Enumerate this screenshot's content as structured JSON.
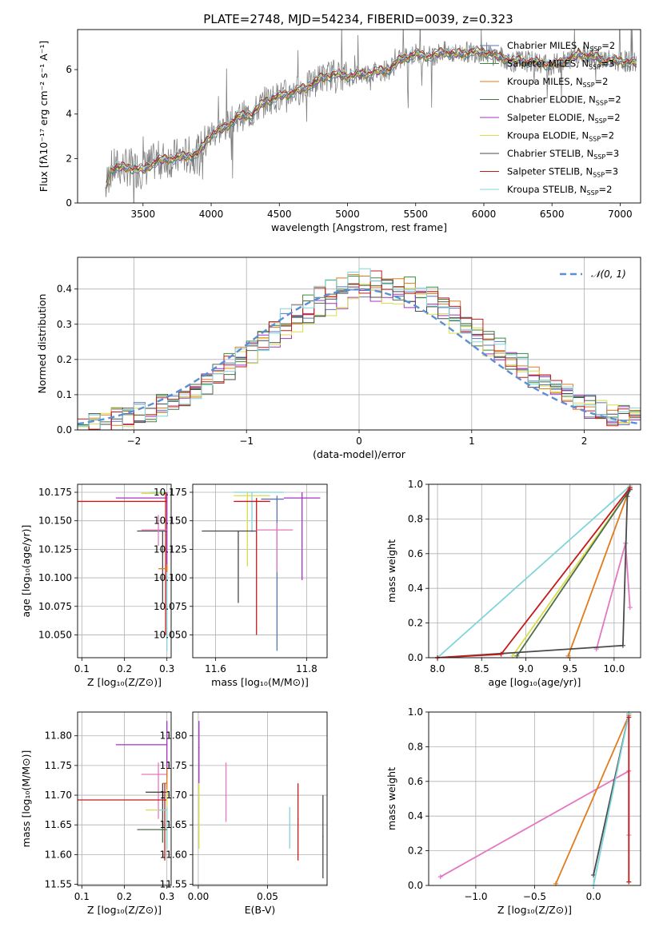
{
  "title": "PLATE=2748, MJD=54234, FIBERID=0039, z=0.323",
  "colors": {
    "Chabrier MILES": "#5b74b5",
    "Salpeter MILES": "#3c8a3a",
    "Kroupa MILES": "#e07b1e",
    "Chabrier ELODIE": "#4d6e4a",
    "Salpeter ELODIE": "#a434c0",
    "Kroupa ELODIE": "#d9dd4a",
    "Chabrier STELIB": "#4a4a4a",
    "Salpeter STELIB": "#c41a1a",
    "Kroupa STELIB": "#80d4dc",
    "observed": "#808080",
    "gaussian": "#5b8ed6",
    "pink": "#e377c2",
    "grid": "#b0b0b0"
  },
  "legend_entries": [
    {
      "name": "Chabrier MILES",
      "nssp": "2"
    },
    {
      "name": "Salpeter MILES",
      "nssp": "3"
    },
    {
      "name": "Kroupa MILES",
      "nssp": "2"
    },
    {
      "name": "Chabrier ELODIE",
      "nssp": "2"
    },
    {
      "name": "Salpeter ELODIE",
      "nssp": "2"
    },
    {
      "name": "Kroupa ELODIE",
      "nssp": "2"
    },
    {
      "name": "Chabrier STELIB",
      "nssp": "3"
    },
    {
      "name": "Salpeter STELIB",
      "nssp": "3"
    },
    {
      "name": "Kroupa STELIB",
      "nssp": "2"
    }
  ],
  "chart_data": [
    {
      "id": "spectrum",
      "type": "line",
      "xlabel": "wavelength [Angstrom, rest frame]",
      "ylabel": "Flux [fλ10⁻¹⁷ erg cm⁻² s⁻¹ A⁻¹]",
      "xlim": [
        3020,
        7150
      ],
      "ylim": [
        0,
        7.8
      ],
      "xticks": [
        3500,
        4000,
        4500,
        5000,
        5500,
        6000,
        6500,
        7000
      ],
      "yticks": [
        0,
        2,
        4,
        6
      ],
      "continuum_x": [
        3200,
        3260,
        3300,
        3400,
        3500,
        3600,
        3700,
        3800,
        3900,
        4000,
        4100,
        4200,
        4300,
        4400,
        4500,
        4600,
        4700,
        4800,
        4900,
        5000,
        5100,
        5200,
        5300,
        5400,
        5500,
        5600,
        5700,
        5800,
        5900,
        6000,
        6100,
        6200,
        6300,
        6400,
        6500,
        6600,
        6700,
        6800,
        6900,
        7000,
        7120
      ],
      "continuum_y": [
        0,
        1.5,
        1.6,
        1.6,
        1.5,
        1.9,
        2.0,
        2.1,
        2.2,
        3.1,
        3.4,
        3.9,
        4.0,
        4.6,
        4.8,
        5.0,
        5.2,
        5.6,
        5.8,
        5.7,
        5.8,
        5.9,
        6.0,
        6.5,
        6.7,
        6.6,
        6.8,
        6.7,
        6.8,
        6.8,
        6.6,
        6.4,
        6.4,
        6.3,
        6.2,
        6.4,
        6.7,
        6.6,
        6.4,
        6.4,
        6.3
      ]
    },
    {
      "id": "residuals",
      "type": "histogram",
      "xlabel": "(data-model)/error",
      "ylabel": "Normed distribution",
      "xlim": [
        -2.5,
        2.5
      ],
      "ylim": [
        0,
        0.49
      ],
      "xticks": [
        -2,
        -1,
        0,
        1,
        2
      ],
      "yticks": [
        0.0,
        0.1,
        0.2,
        0.3,
        0.4
      ],
      "legend": "𝒩(0, 1)",
      "bin_width": 0.1
    },
    {
      "id": "age-vs-Z",
      "type": "errorbar",
      "xlabel": "Z [log₁₀(Z/Z⊙)]",
      "ylabel": "age  [log₁₀(age/yr)]",
      "xlim": [
        0.09,
        0.31
      ],
      "ylim": [
        10.03,
        10.182
      ],
      "xticks": [
        0.1,
        0.2,
        0.3
      ],
      "yticks": [
        10.05,
        10.075,
        10.1,
        10.125,
        10.15,
        10.175
      ],
      "points": [
        {
          "model": "Kroupa STELIB",
          "x": 0.3,
          "y": 10.175,
          "xlo": 0.26,
          "xhi": 0.3,
          "ylo": 10.036,
          "yhi": 10.175
        },
        {
          "model": "Kroupa ELODIE",
          "x": 0.3,
          "y": 10.174,
          "xlo": 0.24,
          "xhi": 0.3,
          "ylo": 10.11,
          "yhi": 10.175
        },
        {
          "model": "Salpeter ELODIE",
          "x": 0.3,
          "y": 10.17,
          "xlo": 0.18,
          "xhi": 0.3,
          "ylo": 10.105,
          "yhi": 10.175
        },
        {
          "model": "Salpeter STELIB",
          "x": 0.297,
          "y": 10.167,
          "xlo": 0.09,
          "xhi": 0.3,
          "ylo": 10.05,
          "yhi": 10.175
        },
        {
          "model": "Chabrier STELIB",
          "x": 0.29,
          "y": 10.141,
          "xlo": 0.23,
          "xhi": 0.3,
          "ylo": 10.078,
          "yhi": 10.141
        },
        {
          "model": "pink",
          "x": 0.28,
          "y": 10.142,
          "xlo": 0.24,
          "xhi": 0.3,
          "ylo": 10.128,
          "yhi": 10.155
        },
        {
          "model": "Kroupa MILES",
          "x": 0.3,
          "y": 10.108,
          "xlo": 0.28,
          "xhi": 0.3,
          "ylo": 10.105,
          "yhi": 10.112
        }
      ]
    },
    {
      "id": "age-vs-mass",
      "type": "errorbar",
      "xlabel": "mass [log₁₀(M/M⊙)]",
      "ylabel": "",
      "xlim": [
        11.55,
        11.845
      ],
      "ylim": [
        10.03,
        10.182
      ],
      "xticks": [
        11.6,
        11.8
      ],
      "yticks": [
        10.05,
        10.075,
        10.1,
        10.125,
        10.15,
        10.175
      ],
      "points": [
        {
          "model": "Kroupa STELIB",
          "x": 11.68,
          "y": 10.175,
          "xlo": 11.64,
          "xhi": 11.75,
          "ylo": 10.14,
          "yhi": 10.175
        },
        {
          "model": "Kroupa ELODIE",
          "x": 11.67,
          "y": 10.172,
          "xlo": 11.64,
          "xhi": 11.72,
          "ylo": 10.11,
          "yhi": 10.175
        },
        {
          "model": "Salpeter ELODIE",
          "x": 11.79,
          "y": 10.17,
          "xlo": 11.75,
          "xhi": 11.83,
          "ylo": 10.098,
          "yhi": 10.175
        },
        {
          "model": "Salpeter STELIB",
          "x": 11.69,
          "y": 10.167,
          "xlo": 11.64,
          "xhi": 11.72,
          "ylo": 10.05,
          "yhi": 10.17
        },
        {
          "model": "Chabrier MILES",
          "x": 11.735,
          "y": 10.169,
          "xlo": 11.7,
          "xhi": 11.75,
          "ylo": 10.036,
          "yhi": 10.172
        },
        {
          "model": "Chabrier STELIB",
          "x": 11.65,
          "y": 10.141,
          "xlo": 11.57,
          "xhi": 11.69,
          "ylo": 10.078,
          "yhi": 10.141
        },
        {
          "model": "pink",
          "x": 11.735,
          "y": 10.142,
          "xlo": 11.69,
          "xhi": 11.77,
          "ylo": 10.105,
          "yhi": 10.148
        }
      ]
    },
    {
      "id": "massweight-vs-age",
      "type": "line",
      "xlabel": "age  [log₁₀(age/yr)]",
      "ylabel": "mass weight",
      "xlim": [
        7.9,
        10.3
      ],
      "ylim": [
        0,
        1.0
      ],
      "xticks": [
        8.0,
        8.5,
        9.0,
        9.5,
        10.0
      ],
      "yticks": [
        0.0,
        0.2,
        0.4,
        0.6,
        0.8,
        1.0
      ],
      "series": [
        {
          "model": "Kroupa STELIB",
          "x": [
            8.0,
            10.18
          ],
          "y": [
            0.0,
            0.99
          ]
        },
        {
          "model": "Kroupa MILES",
          "x": [
            9.48,
            10.18
          ],
          "y": [
            0.01,
            0.98
          ]
        },
        {
          "model": "Kroupa ELODIE",
          "x": [
            8.85,
            10.18
          ],
          "y": [
            0.01,
            0.97
          ]
        },
        {
          "model": "Chabrier ELODIE",
          "x": [
            8.9,
            10.18
          ],
          "y": [
            0.01,
            0.97
          ]
        },
        {
          "model": "pink",
          "x": [
            9.8,
            10.13,
            10.18
          ],
          "y": [
            0.05,
            0.66,
            0.29
          ]
        },
        {
          "model": "Chabrier STELIB",
          "x": [
            8.0,
            10.1,
            10.15,
            10.18
          ],
          "y": [
            0.0,
            0.07,
            0.93,
            0.97
          ]
        },
        {
          "model": "Salpeter STELIB",
          "x": [
            8.0,
            8.72,
            10.18
          ],
          "y": [
            0.0,
            0.02,
            0.98
          ]
        }
      ]
    },
    {
      "id": "mass-vs-Z",
      "type": "errorbar",
      "xlabel": "Z [log₁₀(Z/Z⊙)]",
      "ylabel": "mass [log₁₀(M/M⊙)]",
      "xlim": [
        0.09,
        0.31
      ],
      "ylim": [
        11.548,
        11.84
      ],
      "xticks": [
        0.1,
        0.2,
        0.3
      ],
      "yticks": [
        11.55,
        11.6,
        11.65,
        11.7,
        11.75,
        11.8
      ],
      "points": [
        {
          "model": "Salpeter ELODIE",
          "x": 0.3,
          "y": 11.785,
          "xlo": 0.18,
          "xhi": 0.3,
          "ylo": 11.73,
          "yhi": 11.825
        },
        {
          "model": "pink",
          "x": 0.28,
          "y": 11.735,
          "xlo": 0.24,
          "xhi": 0.3,
          "ylo": 11.66,
          "yhi": 11.755
        },
        {
          "model": "Kroupa MILES",
          "x": 0.3,
          "y": 11.72,
          "xlo": 0.29,
          "xhi": 0.3,
          "ylo": 11.7,
          "yhi": 11.745
        },
        {
          "model": "Chabrier STELIB",
          "x": 0.29,
          "y": 11.705,
          "xlo": 0.25,
          "xhi": 0.3,
          "ylo": 11.65,
          "yhi": 11.72
        },
        {
          "model": "Salpeter STELIB",
          "x": 0.295,
          "y": 11.692,
          "xlo": 0.09,
          "xhi": 0.3,
          "ylo": 11.59,
          "yhi": 11.72
        },
        {
          "model": "Kroupa ELODIE",
          "x": 0.3,
          "y": 11.675,
          "xlo": 0.25,
          "xhi": 0.3,
          "ylo": 11.61,
          "yhi": 11.71
        },
        {
          "model": "Kroupa STELIB",
          "x": 0.3,
          "y": 11.675,
          "xlo": 0.28,
          "xhi": 0.3,
          "ylo": 11.61,
          "yhi": 11.68
        },
        {
          "model": "Chabrier ELODIE",
          "x": 0.29,
          "y": 11.642,
          "xlo": 0.23,
          "xhi": 0.3,
          "ylo": 11.62,
          "yhi": 11.66
        }
      ]
    },
    {
      "id": "mass-vs-EBV",
      "type": "errorbar",
      "xlabel": "E(B-V)",
      "ylabel": "",
      "xlim": [
        -0.004,
        0.093
      ],
      "ylim": [
        11.548,
        11.84
      ],
      "xticks": [
        0.0,
        0.05
      ],
      "yticks": [
        11.55,
        11.6,
        11.65,
        11.7,
        11.75,
        11.8
      ],
      "points": [
        {
          "model": "Salpeter ELODIE",
          "x": 0.0005,
          "y": 11.78,
          "ylo": 11.72,
          "yhi": 11.825
        },
        {
          "model": "Kroupa ELODIE",
          "x": 0.0005,
          "y": 11.67,
          "ylo": 11.61,
          "yhi": 11.72
        },
        {
          "model": "pink",
          "x": 0.02,
          "y": 11.7,
          "ylo": 11.655,
          "yhi": 11.755
        },
        {
          "model": "Kroupa STELIB",
          "x": 0.066,
          "y": 11.645,
          "ylo": 11.61,
          "yhi": 11.68
        },
        {
          "model": "Salpeter STELIB",
          "x": 0.072,
          "y": 11.66,
          "ylo": 11.59,
          "yhi": 11.72
        },
        {
          "model": "Chabrier STELIB",
          "x": 0.09,
          "y": 11.63,
          "ylo": 11.56,
          "yhi": 11.7
        }
      ]
    },
    {
      "id": "massweight-vs-Z",
      "type": "line",
      "xlabel": "Z [log₁₀(Z/Z⊙)]",
      "ylabel": "mass weight",
      "xlim": [
        -1.4,
        0.4
      ],
      "ylim": [
        0,
        1.0
      ],
      "xticks": [
        -1.0,
        -0.5,
        0.0
      ],
      "yticks": [
        0.0,
        0.2,
        0.4,
        0.6,
        0.8,
        1.0
      ],
      "series": [
        {
          "model": "pink",
          "x": [
            -1.3,
            0.3,
            0.3
          ],
          "y": [
            0.05,
            0.66,
            0.29
          ]
        },
        {
          "model": "Kroupa MILES",
          "x": [
            -0.32,
            0.3
          ],
          "y": [
            0.01,
            0.98
          ]
        },
        {
          "model": "Chabrier STELIB",
          "x": [
            0.0,
            0.3
          ],
          "y": [
            0.06,
            0.99
          ]
        },
        {
          "model": "Kroupa STELIB",
          "x": [
            0.0,
            0.3
          ],
          "y": [
            0.0,
            0.99
          ]
        },
        {
          "model": "Salpeter STELIB",
          "x": [
            0.3,
            0.3
          ],
          "y": [
            0.02,
            0.97
          ]
        }
      ]
    }
  ]
}
